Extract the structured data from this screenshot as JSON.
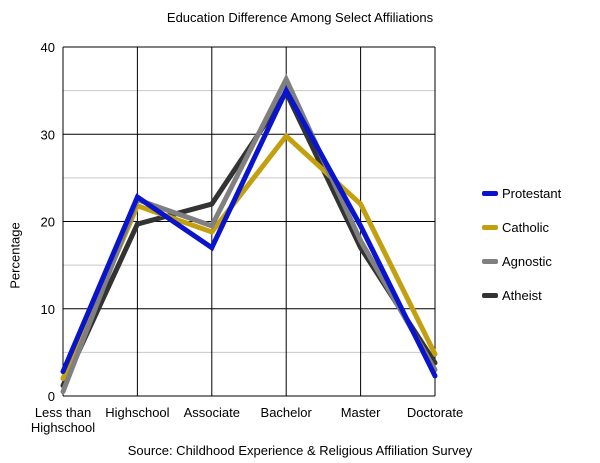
{
  "chart_data": {
    "type": "line",
    "title": "Education Difference Among Select Affiliations",
    "ylabel": "Percentage",
    "xlabel": "",
    "source": "Source: Childhood Experience & Religious Affiliation Survey",
    "categories": [
      "Less than\nHighschool",
      "Highschool",
      "Associate",
      "Bachelor",
      "Master",
      "Doctorate"
    ],
    "ylim": [
      0,
      40
    ],
    "yticks": [
      "0",
      "10",
      "20",
      "30",
      "40"
    ],
    "grid": true,
    "legend_position": "right",
    "series": [
      {
        "name": "Protestant",
        "color": "#0a14cc",
        "values": [
          2.8,
          22.8,
          17.0,
          35.0,
          19.5,
          2.3
        ]
      },
      {
        "name": "Catholic",
        "color": "#c2a010",
        "values": [
          2.0,
          21.8,
          18.8,
          29.8,
          22.0,
          4.8
        ]
      },
      {
        "name": "Agnostic",
        "color": "#808080",
        "values": [
          0.5,
          22.5,
          19.5,
          36.3,
          17.8,
          3.0
        ]
      },
      {
        "name": "Atheist",
        "color": "#333333",
        "values": [
          1.2,
          19.7,
          22.0,
          34.8,
          17.0,
          3.8
        ]
      }
    ]
  }
}
